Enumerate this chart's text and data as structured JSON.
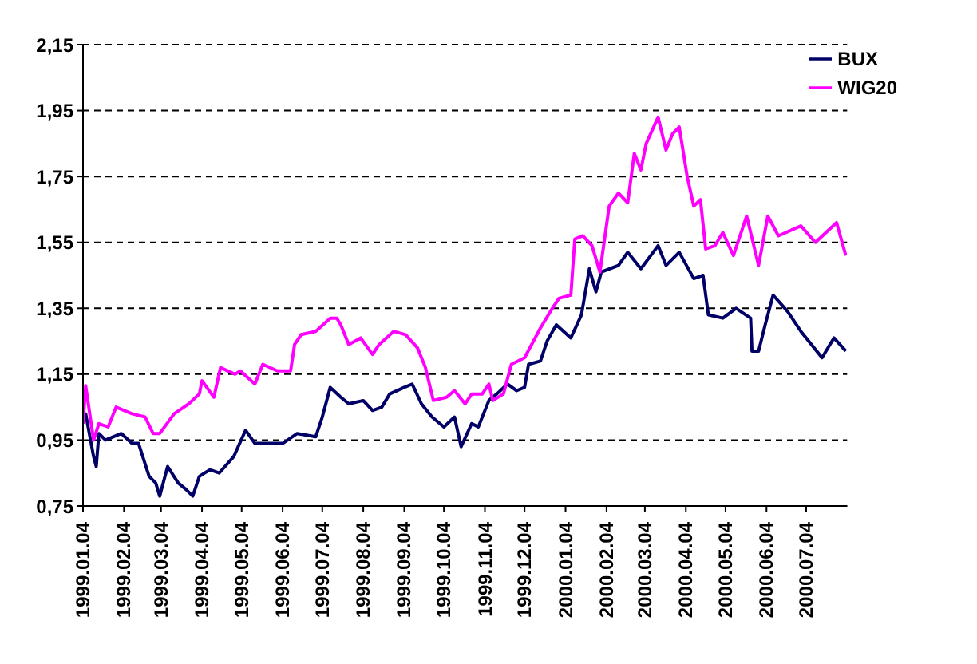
{
  "chart_data": {
    "type": "line",
    "grid": "y",
    "legend": "top right",
    "marker": "none",
    "line_style": "solid",
    "xlim": [
      "1999-01-04",
      "2000-08-04"
    ],
    "ylim": [
      0.75,
      2.15
    ],
    "yticks": [
      {
        "value": 0.75,
        "label": "0,75"
      },
      {
        "value": 0.95,
        "label": "0,95"
      },
      {
        "value": 1.15,
        "label": "1,15"
      },
      {
        "value": 1.35,
        "label": "1,35"
      },
      {
        "value": 1.55,
        "label": "1,55"
      },
      {
        "value": 1.75,
        "label": "1,75"
      },
      {
        "value": 1.95,
        "label": "1,95"
      },
      {
        "value": 2.15,
        "label": "2,15"
      }
    ],
    "xticks": [
      {
        "value": "1999-01-04",
        "label": "1999.01.04"
      },
      {
        "value": "1999-02-04",
        "label": "1999.02.04"
      },
      {
        "value": "1999-03-04",
        "label": "1999.03.04"
      },
      {
        "value": "1999-04-04",
        "label": "1999.04.04"
      },
      {
        "value": "1999-05-04",
        "label": "1999.05.04"
      },
      {
        "value": "1999-06-04",
        "label": "1999.06.04"
      },
      {
        "value": "1999-07-04",
        "label": "1999.07.04"
      },
      {
        "value": "1999-08-04",
        "label": "1999.08.04"
      },
      {
        "value": "1999-09-04",
        "label": "1999.09.04"
      },
      {
        "value": "1999-10-04",
        "label": "1999.10.04"
      },
      {
        "value": "1999-11-04",
        "label": "1999.11.04"
      },
      {
        "value": "1999-12-04",
        "label": "1999.12.04"
      },
      {
        "value": "2000-01-04",
        "label": "2000.01.04"
      },
      {
        "value": "2000-02-04",
        "label": "2000.02.04"
      },
      {
        "value": "2000-03-04",
        "label": "2000.03.04"
      },
      {
        "value": "2000-04-04",
        "label": "2000.04.04"
      },
      {
        "value": "2000-05-04",
        "label": "2000.05.04"
      },
      {
        "value": "2000-06-04",
        "label": "2000.06.04"
      },
      {
        "value": "2000-07-04",
        "label": "2000.07.04"
      }
    ],
    "series": [
      {
        "name": "BUX",
        "color": "#000066",
        "x": [
          "1999-01-04",
          "1999-01-06",
          "1999-01-12",
          "1999-01-14",
          "1999-01-16",
          "1999-01-21",
          "1999-02-02",
          "1999-02-10",
          "1999-02-15",
          "1999-02-23",
          "1999-02-28",
          "1999-03-03",
          "1999-03-09",
          "1999-03-17",
          "1999-03-23",
          "1999-03-28",
          "1999-04-02",
          "1999-04-10",
          "1999-04-17",
          "1999-04-28",
          "1999-05-07",
          "1999-05-14",
          "1999-05-25",
          "1999-06-04",
          "1999-06-15",
          "1999-06-29",
          "1999-07-04",
          "1999-07-10",
          "1999-07-18",
          "1999-07-24",
          "1999-08-04",
          "1999-08-11",
          "1999-08-18",
          "1999-08-24",
          "1999-09-04",
          "1999-09-10",
          "1999-09-17",
          "1999-09-25",
          "1999-10-04",
          "1999-10-12",
          "1999-10-17",
          "1999-10-25",
          "1999-10-30",
          "1999-11-07",
          "1999-11-13",
          "1999-11-21",
          "1999-11-28",
          "1999-12-04",
          "1999-12-07",
          "1999-12-16",
          "1999-12-21",
          "1999-12-28",
          "2000-01-08",
          "2000-01-16",
          "2000-01-22",
          "2000-01-27",
          "2000-01-31",
          "2000-02-13",
          "2000-02-20",
          "2000-03-01",
          "2000-03-14",
          "2000-03-20",
          "2000-03-30",
          "2000-04-10",
          "2000-04-17",
          "2000-04-21",
          "2000-05-02",
          "2000-05-12",
          "2000-05-23",
          "2000-05-24",
          "2000-05-29",
          "2000-06-03",
          "2000-06-09",
          "2000-06-20",
          "2000-06-30",
          "2000-07-16",
          "2000-07-25",
          "2000-08-03"
        ],
        "values": [
          1.03,
          1.03,
          0.9,
          0.87,
          0.97,
          0.95,
          0.97,
          0.94,
          0.94,
          0.84,
          0.82,
          0.78,
          0.87,
          0.82,
          0.8,
          0.78,
          0.84,
          0.86,
          0.85,
          0.9,
          0.98,
          0.94,
          0.94,
          0.94,
          0.97,
          0.96,
          1.02,
          1.11,
          1.08,
          1.06,
          1.07,
          1.04,
          1.05,
          1.09,
          1.11,
          1.12,
          1.06,
          1.02,
          0.99,
          1.02,
          0.93,
          1.0,
          0.99,
          1.07,
          1.09,
          1.12,
          1.1,
          1.11,
          1.18,
          1.19,
          1.25,
          1.3,
          1.26,
          1.33,
          1.47,
          1.4,
          1.46,
          1.48,
          1.52,
          1.47,
          1.54,
          1.48,
          1.52,
          1.44,
          1.45,
          1.33,
          1.32,
          1.35,
          1.32,
          1.22,
          1.22,
          1.3,
          1.39,
          1.34,
          1.28,
          1.2,
          1.26,
          1.22
        ]
      },
      {
        "name": "WIG20",
        "color": "#ff00ff",
        "x": [
          "1999-01-04",
          "1999-01-06",
          "1999-01-12",
          "1999-01-16",
          "1999-01-23",
          "1999-01-29",
          "1999-02-10",
          "1999-02-20",
          "1999-02-26",
          "1999-03-03",
          "1999-03-14",
          "1999-03-25",
          "1999-04-02",
          "1999-04-04",
          "1999-04-13",
          "1999-04-18",
          "1999-04-29",
          "1999-05-03",
          "1999-05-14",
          "1999-05-20",
          "1999-05-31",
          "1999-06-10",
          "1999-06-13",
          "1999-06-18",
          "1999-06-29",
          "1999-07-10",
          "1999-07-15",
          "1999-07-18",
          "1999-07-24",
          "1999-08-02",
          "1999-08-11",
          "1999-08-16",
          "1999-08-27",
          "1999-09-05",
          "1999-09-14",
          "1999-09-20",
          "1999-09-26",
          "1999-10-06",
          "1999-10-12",
          "1999-10-20",
          "1999-10-25",
          "1999-11-02",
          "1999-11-07",
          "1999-11-10",
          "1999-11-18",
          "1999-11-24",
          "1999-12-04",
          "1999-12-12",
          "1999-12-16",
          "1999-12-25",
          "1999-12-30",
          "2000-01-08",
          "2000-01-11",
          "2000-01-17",
          "2000-01-24",
          "2000-01-30",
          "2000-02-06",
          "2000-02-13",
          "2000-02-20",
          "2000-02-25",
          "2000-03-01",
          "2000-03-05",
          "2000-03-14",
          "2000-03-20",
          "2000-03-25",
          "2000-03-30",
          "2000-04-05",
          "2000-04-10",
          "2000-04-15",
          "2000-04-19",
          "2000-04-26",
          "2000-05-02",
          "2000-05-10",
          "2000-05-20",
          "2000-05-29",
          "2000-06-05",
          "2000-06-13",
          "2000-06-30",
          "2000-07-11",
          "2000-07-27",
          "2000-08-03"
        ],
        "values": [
          1.0,
          1.115,
          0.95,
          1.0,
          0.99,
          1.05,
          1.03,
          1.02,
          0.97,
          0.97,
          1.03,
          1.06,
          1.09,
          1.13,
          1.08,
          1.17,
          1.15,
          1.16,
          1.12,
          1.18,
          1.16,
          1.16,
          1.24,
          1.27,
          1.28,
          1.32,
          1.32,
          1.3,
          1.24,
          1.26,
          1.21,
          1.24,
          1.28,
          1.27,
          1.23,
          1.17,
          1.07,
          1.08,
          1.1,
          1.06,
          1.09,
          1.09,
          1.12,
          1.07,
          1.09,
          1.18,
          1.2,
          1.26,
          1.29,
          1.35,
          1.38,
          1.39,
          1.56,
          1.57,
          1.54,
          1.46,
          1.66,
          1.7,
          1.67,
          1.82,
          1.77,
          1.85,
          1.93,
          1.83,
          1.88,
          1.9,
          1.75,
          1.66,
          1.68,
          1.53,
          1.54,
          1.58,
          1.51,
          1.63,
          1.48,
          1.63,
          1.57,
          1.6,
          1.55,
          1.61,
          1.51
        ]
      }
    ]
  }
}
